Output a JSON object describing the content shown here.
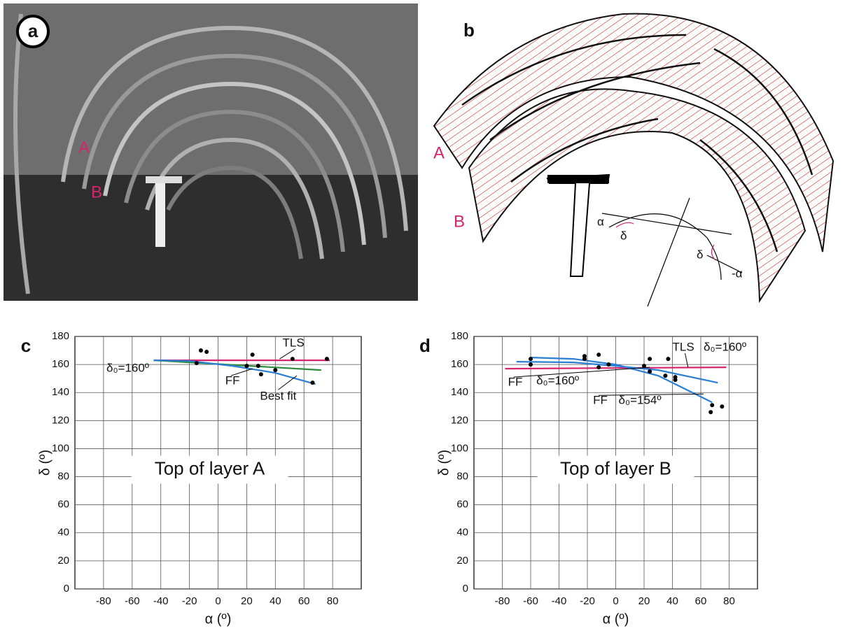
{
  "photo": {
    "label": "a",
    "markers": [
      "A",
      "B"
    ]
  },
  "diagram": {
    "label": "b",
    "markers": [
      "A",
      "B"
    ],
    "symbols": [
      "α",
      "δ",
      "δ",
      "-α"
    ]
  },
  "chart_data": [
    {
      "type": "scatter",
      "panel": "c",
      "title": "Top of layer A",
      "xlabel": "α (º)",
      "ylabel": "δ (º)",
      "xlim": [
        -100,
        100
      ],
      "ylim": [
        0,
        180
      ],
      "xticks": [
        -80,
        -60,
        -40,
        -20,
        0,
        20,
        40,
        60,
        80
      ],
      "yticks": [
        0,
        20,
        40,
        60,
        80,
        100,
        120,
        140,
        160,
        180
      ],
      "grid": true,
      "series": [
        {
          "type": "scatter",
          "color": "#000000",
          "x": [
            -15,
            -12,
            -8,
            20,
            24,
            28,
            30,
            40,
            52,
            66,
            76
          ],
          "values": [
            161,
            170,
            169,
            159,
            167,
            159,
            153,
            156,
            164,
            147,
            164
          ]
        },
        {
          "type": "line",
          "name": "TLS",
          "color": "#d6246e",
          "x": [
            -45,
            78
          ],
          "values": [
            163,
            163
          ]
        },
        {
          "type": "line",
          "name": "FF",
          "color": "#2e8b3c",
          "x": [
            -45,
            72
          ],
          "values": [
            163,
            156
          ]
        },
        {
          "type": "line",
          "name": "Best fit",
          "color": "#2a7fd4",
          "x": [
            -45,
            -20,
            10,
            40,
            68
          ],
          "values": [
            163,
            162.5,
            159,
            154,
            146
          ]
        }
      ],
      "annotations": [
        "δ₀=160º"
      ]
    },
    {
      "type": "scatter",
      "panel": "d",
      "title": "Top of layer B",
      "xlabel": "α (º)",
      "ylabel": "δ (º)",
      "xlim": [
        -100,
        100
      ],
      "ylim": [
        0,
        180
      ],
      "xticks": [
        -80,
        -60,
        -40,
        -20,
        0,
        20,
        40,
        60,
        80
      ],
      "yticks": [
        0,
        20,
        40,
        60,
        80,
        100,
        120,
        140,
        160,
        180
      ],
      "grid": true,
      "series": [
        {
          "type": "scatter",
          "color": "#000000",
          "x": [
            -60,
            -60,
            -22,
            -22,
            -12,
            -12,
            -5,
            20,
            24,
            24,
            35,
            37,
            42,
            42,
            67,
            68,
            75
          ],
          "values": [
            160,
            164,
            164,
            166,
            158,
            167,
            160,
            159,
            155,
            164,
            152,
            164,
            149,
            151,
            126,
            131,
            130
          ]
        },
        {
          "type": "line",
          "name": "TLS",
          "color": "#d6246e",
          "x": [
            -78,
            78
          ],
          "values": [
            157,
            158
          ]
        },
        {
          "type": "line",
          "name": "FF",
          "color": "#2a7fd4",
          "x": [
            -70,
            -30,
            0,
            30,
            72
          ],
          "values": [
            162,
            161.5,
            159,
            156,
            147
          ]
        },
        {
          "type": "line",
          "name": "FF",
          "color": "#2a7fd4",
          "x": [
            -60,
            -30,
            0,
            30,
            68
          ],
          "values": [
            165,
            164,
            160,
            152,
            133
          ]
        }
      ],
      "annotations": [
        "δ₀=160º",
        "δ₀=160º",
        "δ₀=154º"
      ]
    }
  ]
}
